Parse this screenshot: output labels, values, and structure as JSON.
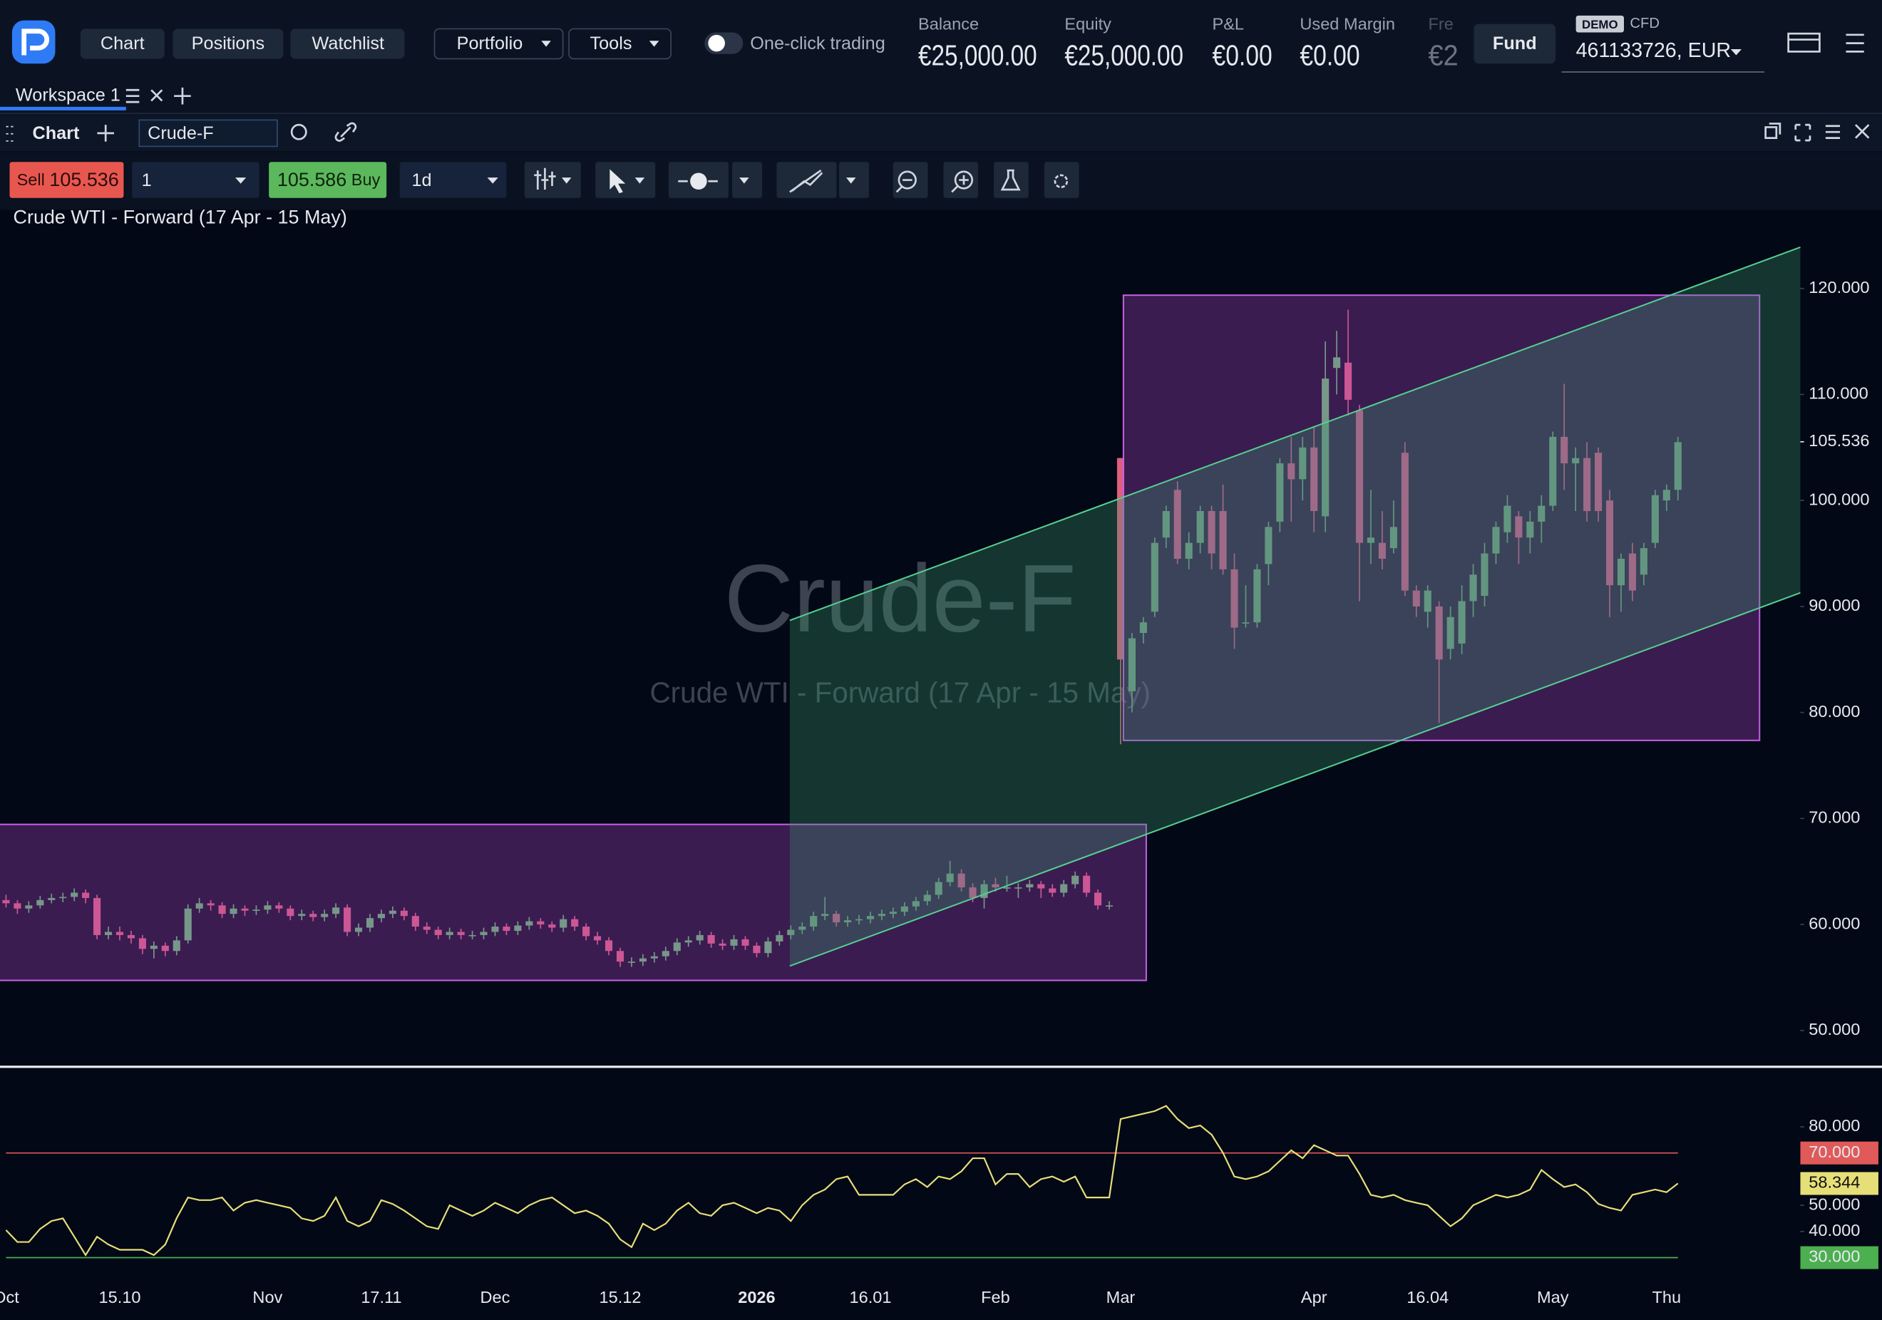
{
  "header": {
    "nav": [
      "Chart",
      "Positions",
      "Watchlist"
    ],
    "menus": [
      "Portfolio",
      "Tools"
    ],
    "toggle": "One-click trading",
    "stats": [
      {
        "label": "Balance",
        "value": "€25,000.00"
      },
      {
        "label": "Equity",
        "value": "€25,000.00"
      },
      {
        "label": "P&L",
        "value": "€0.00"
      },
      {
        "label": "Used Margin",
        "value": "€0.00"
      },
      {
        "label": "Fre",
        "value": "€2"
      }
    ],
    "fund": "Fund",
    "account_badge": "DEMO",
    "account_type": "CFD",
    "account": "461133726, EUR"
  },
  "workspace": {
    "tab": "Workspace 1"
  },
  "panel": {
    "title": "Chart",
    "symbol": "Crude-F"
  },
  "toolbar": {
    "sell": "Sell",
    "sell_price": "105.536",
    "quantity": "1",
    "buy_price": "105.586",
    "buy": "Buy",
    "interval": "1d"
  },
  "chart_data": [
    {
      "type": "candlestick",
      "title": "Crude WTI - Forward (17 Apr - 15 May)",
      "up_color": "#5fbf6a",
      "down_color": "#de5f7c",
      "grid": false,
      "xlim": [
        0,
        147
      ],
      "ylim": [
        46.8,
        127.4
      ],
      "xticks": [
        {
          "value": 0,
          "label": "Oct"
        },
        {
          "value": 10,
          "label": "15.10"
        },
        {
          "value": 23,
          "label": "Nov"
        },
        {
          "value": 33,
          "label": "17.11"
        },
        {
          "value": 43,
          "label": "Dec"
        },
        {
          "value": 54,
          "label": "15.12"
        },
        {
          "value": 66,
          "label": "2026",
          "bold": true
        },
        {
          "value": 76,
          "label": "16.01"
        },
        {
          "value": 87,
          "label": "Feb"
        },
        {
          "value": 98,
          "label": "Mar"
        },
        {
          "value": 115,
          "label": "Apr"
        },
        {
          "value": 125,
          "label": "16.04"
        },
        {
          "value": 136,
          "label": "May"
        },
        {
          "value": 146,
          "label": "Thu"
        }
      ],
      "yticks": [
        {
          "value": 50,
          "label": "50.000"
        },
        {
          "value": 60,
          "label": "60.000"
        },
        {
          "value": 70,
          "label": "70.000"
        },
        {
          "value": 80,
          "label": "80.000"
        },
        {
          "value": 90,
          "label": "90.000"
        },
        {
          "value": 100,
          "label": "100.000"
        },
        {
          "value": 110,
          "label": "110.000"
        },
        {
          "value": 120,
          "label": "120.000"
        }
      ],
      "last_price": {
        "value": 105.536,
        "label": "105.536"
      },
      "open": [
        62.3,
        62.0,
        61.5,
        61.8,
        62.3,
        62.5,
        62.6,
        63.0,
        62.5,
        59.0,
        59.3,
        59.0,
        58.7,
        57.7,
        58.0,
        57.5,
        58.5,
        61.5,
        62.0,
        61.8,
        61.0,
        61.5,
        61.3,
        61.4,
        61.8,
        61.5,
        60.8,
        61.0,
        60.7,
        61.0,
        61.6,
        59.3,
        59.7,
        60.6,
        61.0,
        61.3,
        60.8,
        59.8,
        59.5,
        59.0,
        59.3,
        59.0,
        59.0,
        59.3,
        59.8,
        59.4,
        59.9,
        60.3,
        60.0,
        59.7,
        60.5,
        59.8,
        58.9,
        58.5,
        57.5,
        56.5,
        56.5,
        56.8,
        57.0,
        57.5,
        58.3,
        58.5,
        59.0,
        58.2,
        58.0,
        58.6,
        58.0,
        57.3,
        58.4,
        59.0,
        59.5,
        59.8,
        60.8,
        61.0,
        60.2,
        60.4,
        60.5,
        60.8,
        61.0,
        61.2,
        61.7,
        62.2,
        62.8,
        64.0,
        64.8,
        63.5,
        62.5,
        63.8,
        63.5,
        63.5,
        63.5,
        63.8,
        63.4,
        63.0,
        63.8,
        64.6,
        63.0,
        61.8,
        104,
        82,
        87.5,
        89.5,
        96.5,
        101,
        94.5,
        96,
        99,
        99,
        93.5,
        88.5,
        88.5,
        94,
        98,
        103.5,
        102,
        105,
        98.5,
        112.5,
        113,
        108.5,
        96,
        96,
        95.5,
        104.5,
        91.5,
        89.5,
        90,
        86,
        86.5,
        90.5,
        91,
        95,
        97,
        98.5,
        96.5,
        98,
        99.5,
        106,
        103.5,
        104,
        104.5,
        100,
        92,
        95,
        93,
        96,
        100,
        101
      ],
      "high": [
        62.8,
        62.3,
        62.2,
        62.7,
        62.9,
        63.0,
        63.4,
        63.3,
        62.8,
        59.8,
        59.8,
        59.4,
        59.0,
        58.4,
        58.3,
        58.9,
        61.9,
        62.5,
        62.3,
        62.1,
        61.9,
        61.8,
        61.8,
        62.2,
        62.1,
        61.8,
        61.4,
        61.3,
        61.4,
        62.0,
        61.9,
        60.1,
        61.0,
        61.4,
        61.7,
        61.6,
        61.1,
        60.2,
        59.8,
        59.7,
        59.6,
        59.4,
        59.7,
        60.2,
        60.1,
        60.3,
        60.7,
        60.6,
        60.3,
        60.9,
        60.8,
        60.1,
        59.3,
        58.8,
        57.8,
        56.9,
        57.2,
        57.4,
        57.9,
        58.7,
        58.9,
        59.4,
        59.3,
        58.6,
        59.0,
        58.9,
        58.3,
        58.8,
        59.4,
        59.9,
        60.2,
        61.2,
        62.6,
        61.3,
        60.8,
        60.9,
        61.2,
        61.4,
        61.6,
        62.1,
        62.6,
        63.2,
        64.4,
        66.0,
        65.2,
        63.9,
        64.2,
        64.4,
        64.6,
        63.9,
        64.2,
        64.1,
        63.8,
        64.2,
        65.0,
        64.9,
        63.3,
        62.2,
        104,
        87.5,
        89,
        96.5,
        99.5,
        101.8,
        97,
        99.5,
        99.5,
        101.5,
        95,
        92,
        94,
        98,
        104,
        106,
        106,
        107,
        115,
        116,
        118,
        109,
        101,
        99,
        100,
        105.5,
        92,
        92,
        90.5,
        90,
        92,
        94,
        96,
        98,
        100.5,
        99,
        99,
        100.5,
        106.5,
        111,
        105,
        105.5,
        105,
        101,
        95,
        96,
        96,
        101,
        101.5,
        106
      ],
      "low": [
        61.6,
        61.0,
        61.1,
        61.5,
        62.0,
        62.1,
        62.2,
        62.0,
        58.6,
        58.6,
        58.5,
        58.2,
        57.2,
        56.8,
        57.0,
        57.1,
        58.2,
        61.1,
        61.3,
        60.6,
        60.6,
        60.8,
        60.9,
        61.0,
        61.1,
        60.4,
        60.4,
        60.3,
        60.3,
        60.6,
        58.9,
        58.9,
        59.3,
        60.2,
        60.6,
        60.4,
        59.4,
        59.1,
        58.6,
        58.6,
        58.6,
        58.6,
        58.6,
        58.9,
        59.0,
        59.0,
        59.5,
        59.6,
        59.3,
        59.3,
        59.4,
        58.5,
        58.1,
        57.1,
        56.0,
        56.0,
        56.1,
        56.4,
        56.6,
        57.1,
        57.9,
        58.1,
        57.8,
        57.6,
        57.6,
        57.6,
        56.9,
        56.9,
        58.0,
        58.6,
        59.1,
        59.4,
        60.4,
        59.8,
        59.8,
        60.0,
        60.1,
        60.4,
        60.6,
        60.8,
        61.3,
        61.8,
        62.4,
        63.6,
        63.1,
        62.1,
        61.5,
        63.1,
        63.1,
        62.5,
        63.1,
        62.5,
        62.6,
        62.6,
        63.4,
        62.6,
        61.4,
        61.4,
        77,
        80,
        86.5,
        89,
        95.5,
        94,
        93.5,
        95,
        93.5,
        93,
        86,
        88,
        88,
        92,
        97,
        98,
        100,
        97,
        97,
        110,
        108,
        90.5,
        94,
        93.5,
        95,
        91,
        89,
        88,
        79,
        85,
        85.5,
        89,
        90,
        94,
        96,
        94,
        95,
        96,
        99,
        101,
        99,
        98,
        98,
        89,
        89.5,
        90.5,
        92,
        95.5,
        99,
        100
      ],
      "close": [
        62.0,
        61.5,
        61.8,
        62.3,
        62.5,
        62.6,
        63.0,
        62.5,
        59.0,
        59.3,
        59.0,
        58.7,
        57.7,
        58.0,
        57.5,
        58.5,
        61.5,
        62.0,
        61.8,
        61.0,
        61.5,
        61.3,
        61.4,
        61.8,
        61.5,
        60.8,
        61.0,
        60.7,
        61.0,
        61.6,
        59.3,
        59.7,
        60.6,
        61.0,
        61.3,
        60.8,
        59.8,
        59.5,
        59.0,
        59.3,
        59.0,
        59.0,
        59.3,
        59.8,
        59.4,
        59.9,
        60.3,
        60.0,
        59.7,
        60.5,
        59.8,
        58.9,
        58.5,
        57.5,
        56.5,
        56.5,
        56.8,
        57.0,
        57.5,
        58.3,
        58.5,
        59.0,
        58.2,
        58.0,
        58.6,
        58.0,
        57.3,
        58.4,
        59.0,
        59.5,
        59.8,
        60.8,
        61.0,
        60.2,
        60.4,
        60.5,
        60.8,
        61.0,
        61.2,
        61.7,
        62.2,
        62.8,
        64.0,
        64.8,
        63.5,
        62.5,
        63.8,
        63.5,
        63.5,
        63.5,
        63.8,
        63.4,
        63.0,
        63.8,
        64.6,
        63.0,
        61.8,
        61.8,
        85,
        87,
        88.5,
        96,
        99,
        94.5,
        96,
        99,
        95,
        93.5,
        88,
        88.5,
        93.5,
        97.5,
        103.5,
        102,
        105,
        99,
        111.5,
        113.5,
        109.5,
        96,
        96.5,
        94.5,
        97.5,
        91.5,
        90,
        91.5,
        85,
        89,
        90.5,
        93,
        95,
        97.5,
        99.5,
        96.5,
        98,
        99.5,
        106,
        103.5,
        104,
        99,
        99,
        92,
        94.5,
        91.5,
        95.5,
        100.5,
        101,
        105.5
      ]
    },
    {
      "type": "line",
      "color": "#e6df78",
      "xlim": [
        0,
        147
      ],
      "ylim": [
        23.6,
        101.1
      ],
      "yticks": [
        {
          "value": 40,
          "label": "40.000"
        },
        {
          "value": 50,
          "label": "50.000"
        },
        {
          "value": 80,
          "label": "80.000"
        }
      ],
      "levels": [
        {
          "value": 70,
          "label": "70.000",
          "color": "#e05a5a"
        },
        {
          "value": 30,
          "label": "30.000",
          "color": "#4caf50"
        }
      ],
      "last_value": {
        "value": 58.344,
        "label": "58.344"
      },
      "values": [
        40.5,
        36,
        36,
        41,
        44,
        45,
        38,
        31,
        38,
        35,
        33,
        33,
        33,
        31,
        35,
        45,
        53,
        52,
        52,
        53,
        48,
        51,
        52,
        51,
        50,
        49,
        45,
        44,
        46,
        53,
        44,
        42,
        44,
        52,
        50.5,
        48,
        45,
        42,
        41,
        50,
        48,
        46,
        48,
        51,
        49,
        47,
        50,
        52,
        53,
        50,
        47,
        48,
        46,
        43,
        37,
        34,
        43,
        40.5,
        43,
        48,
        51,
        47,
        46,
        50,
        51,
        49,
        47,
        49,
        48,
        44,
        50,
        54,
        56,
        60,
        61,
        54,
        54,
        54,
        54,
        58,
        60,
        57,
        61,
        60,
        63,
        68,
        68,
        58,
        62,
        62,
        57,
        60,
        61,
        59,
        61,
        53,
        53,
        53,
        83,
        84,
        85,
        86,
        88,
        83,
        79.5,
        80.5,
        77,
        70,
        61,
        60,
        61,
        63,
        67,
        71,
        68,
        73,
        71,
        69,
        69,
        62,
        54,
        53,
        54,
        52,
        51,
        50,
        46,
        42,
        45,
        50,
        52,
        54,
        53,
        54,
        56,
        63.5,
        60,
        57,
        58,
        55,
        50.5,
        49,
        48,
        54,
        55,
        56,
        55,
        58.344
      ]
    }
  ]
}
